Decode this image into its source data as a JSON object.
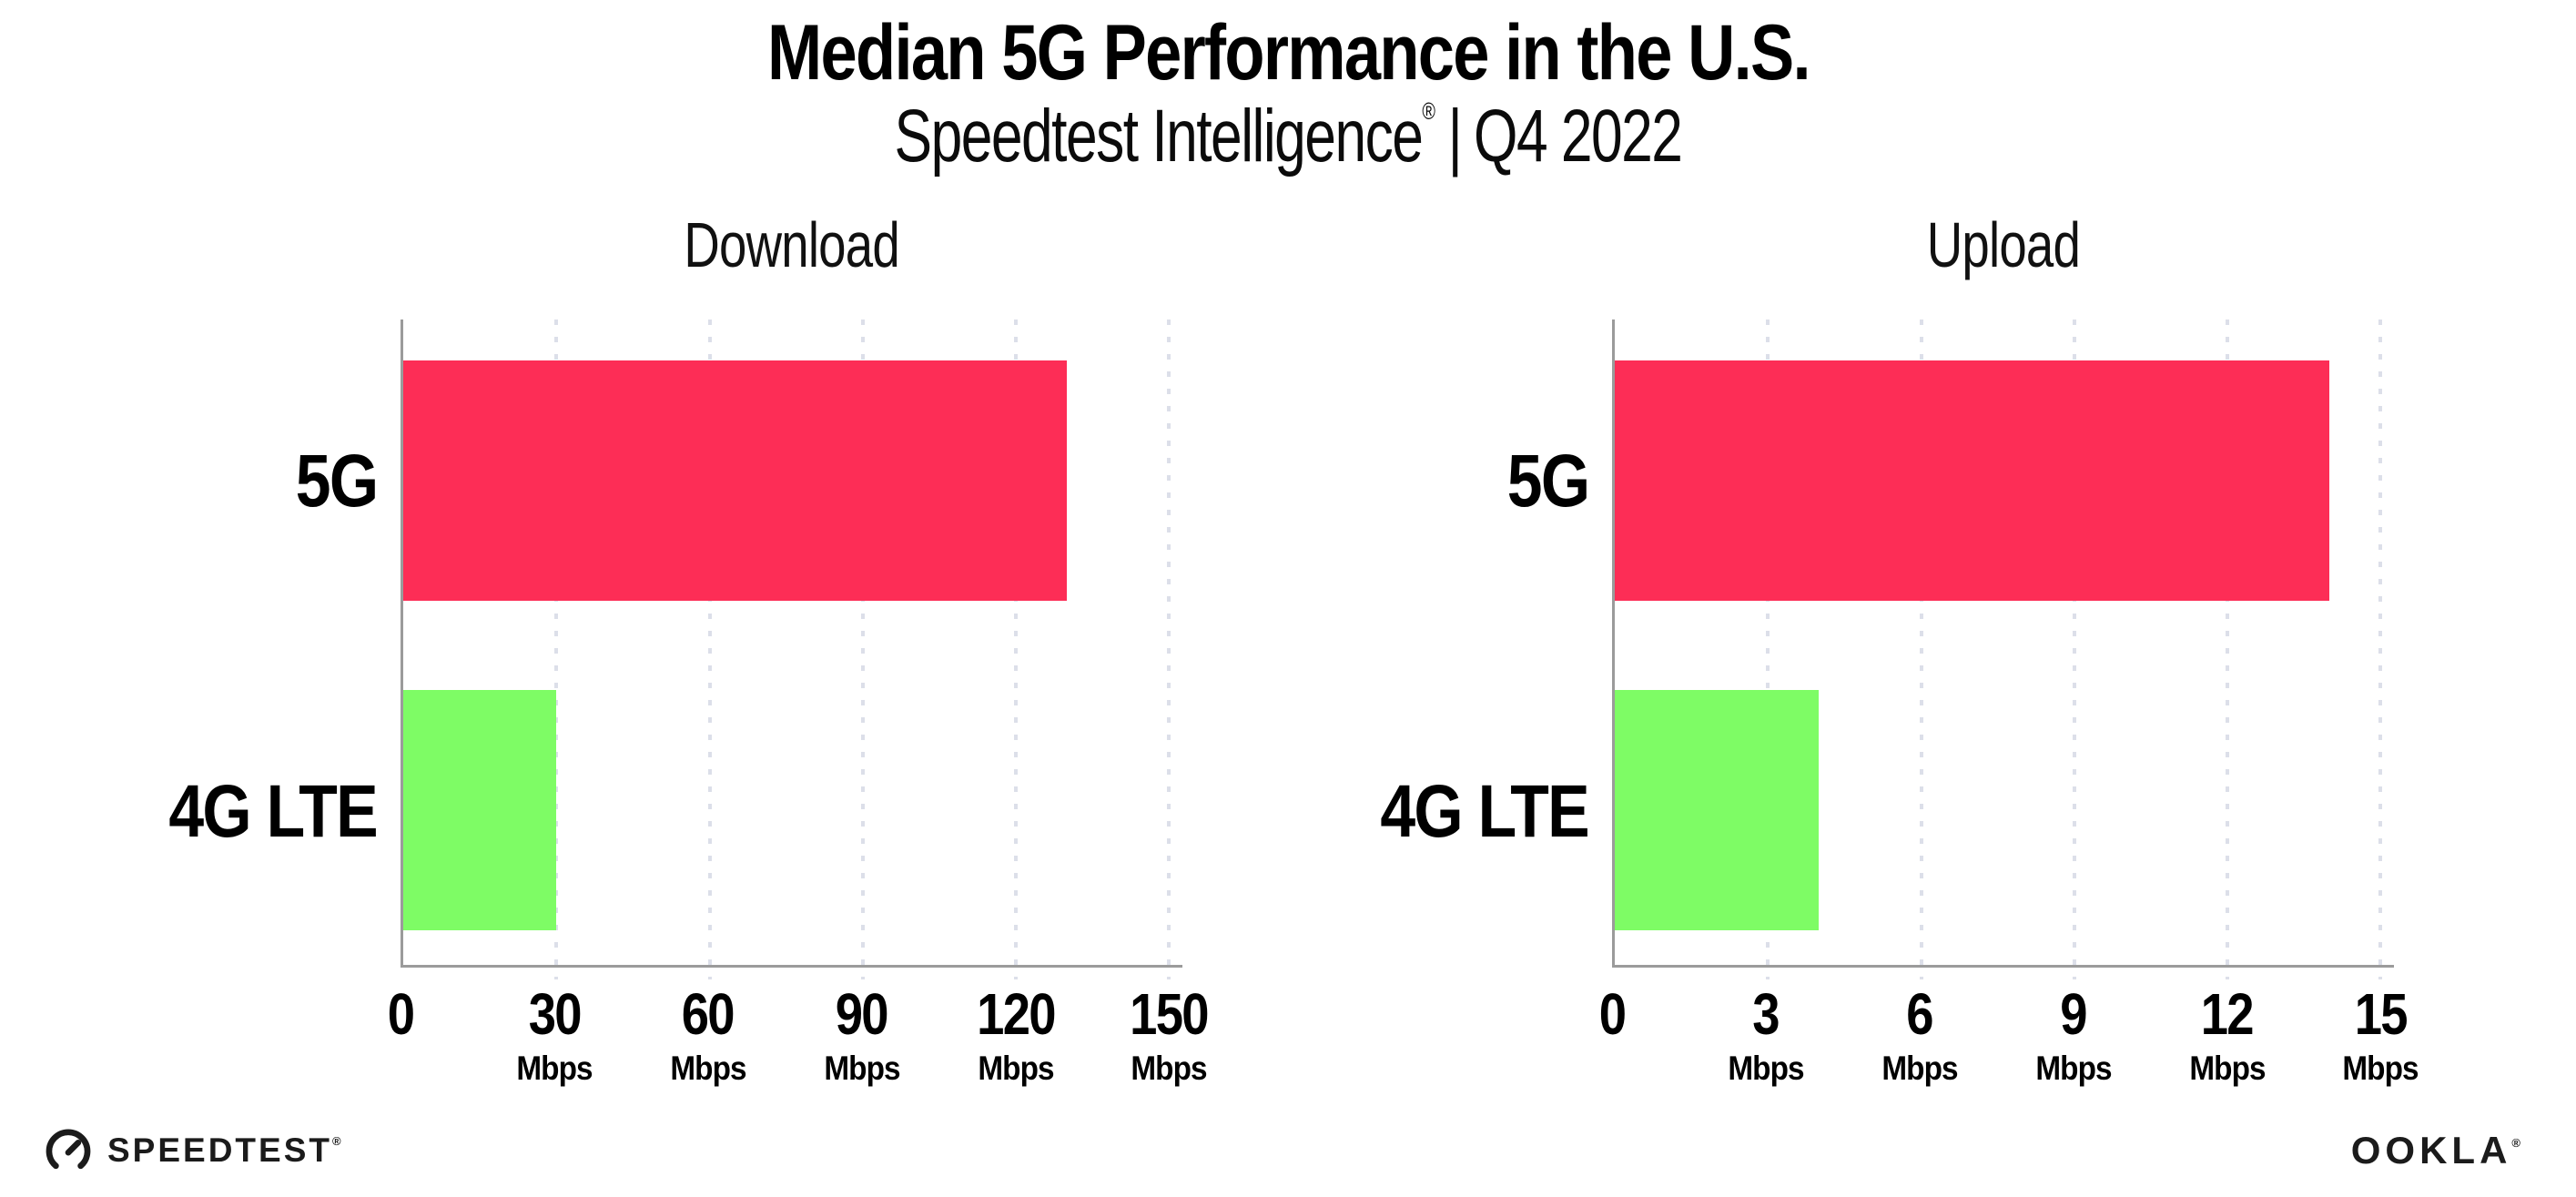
{
  "header": {
    "title": "Median 5G Performance in the U.S.",
    "subtitle_brand": "Speedtest Intelligence",
    "subtitle_reg": "®",
    "subtitle_divider": "|",
    "subtitle_period": "Q4 2022"
  },
  "colors": {
    "bar_5g": "#FD2D56",
    "bar_4g_lte": "#7EFC65",
    "axis": "#9b9b9b",
    "gridline": "#dcdfe9",
    "text": "#000000"
  },
  "chart_data": [
    {
      "type": "bar",
      "orientation": "horizontal",
      "title": "Download",
      "categories": [
        "5G",
        "4G LTE"
      ],
      "values": [
        130,
        30
      ],
      "unit": "Mbps",
      "xlim": [
        0,
        150
      ],
      "ticks": [
        0,
        30,
        60,
        90,
        120,
        150
      ],
      "tick_unit": "Mbps",
      "bar_colors": [
        "#FD2D56",
        "#7EFC65"
      ],
      "grid": "dotted-vertical",
      "legend": "none"
    },
    {
      "type": "bar",
      "orientation": "horizontal",
      "title": "Upload",
      "categories": [
        "5G",
        "4G LTE"
      ],
      "values": [
        14,
        4
      ],
      "unit": "Mbps",
      "xlim": [
        0,
        15
      ],
      "ticks": [
        0,
        3,
        6,
        9,
        12,
        15
      ],
      "tick_unit": "Mbps",
      "bar_colors": [
        "#FD2D56",
        "#7EFC65"
      ],
      "grid": "dotted-vertical",
      "legend": "none"
    }
  ],
  "footer": {
    "speedtest_label": "SPEEDTEST",
    "speedtest_reg": "®",
    "ookla_label": "OOKLA",
    "ookla_reg": "®"
  }
}
